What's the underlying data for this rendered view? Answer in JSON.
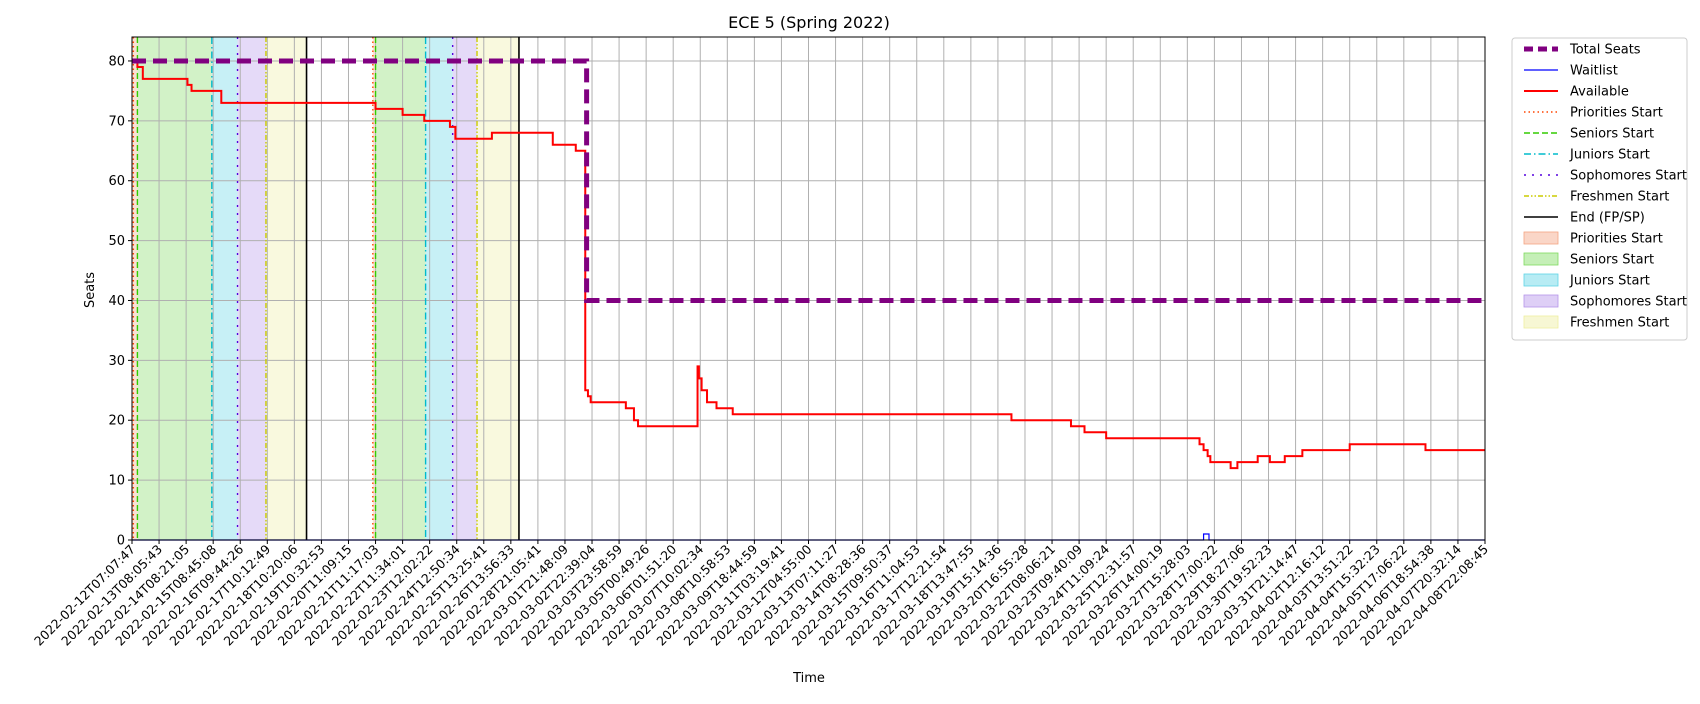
{
  "chart_data": {
    "type": "line",
    "title": "ECE 5 (Spring 2022)",
    "xlabel": "Time",
    "ylabel": "Seats",
    "ylim": [
      0,
      84
    ],
    "yticks": [
      0,
      10,
      20,
      30,
      40,
      50,
      60,
      70,
      80
    ],
    "grid": true,
    "legend_position": "outside-right",
    "x_tick_labels": [
      "2022-02-12T07:07:47",
      "2022-02-13T08:05:43",
      "2022-02-14T08:21:05",
      "2022-02-15T08:45:08",
      "2022-02-16T09:44:26",
      "2022-02-17T10:12:49",
      "2022-02-18T10:20:06",
      "2022-02-19T10:32:53",
      "2022-02-20T11:09:15",
      "2022-02-21T11:17:03",
      "2022-02-22T11:34:01",
      "2022-02-23T12:02:22",
      "2022-02-24T12:50:34",
      "2022-02-25T13:25:41",
      "2022-02-26T13:56:33",
      "2022-02-28T21:05:41",
      "2022-03-01T21:48:09",
      "2022-03-02T22:39:04",
      "2022-03-03T23:58:59",
      "2022-03-05T00:49:26",
      "2022-03-06T01:51:20",
      "2022-03-07T10:02:34",
      "2022-03-08T10:58:53",
      "2022-03-09T18:44:59",
      "2022-03-11T03:19:41",
      "2022-03-12T04:55:00",
      "2022-03-13T07:11:27",
      "2022-03-14T08:28:36",
      "2022-03-15T09:50:37",
      "2022-03-16T11:04:53",
      "2022-03-17T12:21:54",
      "2022-03-18T13:47:55",
      "2022-03-19T15:14:36",
      "2022-03-20T16:55:28",
      "2022-03-22T08:06:21",
      "2022-03-23T09:40:09",
      "2022-03-24T11:09:24",
      "2022-03-25T12:31:57",
      "2022-03-26T14:00:19",
      "2022-03-27T15:28:03",
      "2022-03-28T17:00:22",
      "2022-03-29T18:27:06",
      "2022-03-30T19:52:23",
      "2022-03-31T21:14:47",
      "2022-04-02T12:16:12",
      "2022-04-03T13:51:22",
      "2022-04-04T15:32:23",
      "2022-04-05T17:06:22",
      "2022-04-06T18:54:38",
      "2022-04-07T20:32:14",
      "2022-04-08T22:08:45"
    ],
    "x_range_index": [
      0,
      50
    ],
    "series": [
      {
        "name": "Total Seats",
        "color": "#800080",
        "style": "dashed-thick",
        "points": [
          [
            0,
            80
          ],
          [
            16.8,
            80
          ],
          [
            16.8,
            40
          ],
          [
            50,
            40
          ]
        ]
      },
      {
        "name": "Waitlist",
        "color": "#0000ff",
        "style": "solid-thin",
        "points": [
          [
            0,
            0
          ],
          [
            39.6,
            0
          ],
          [
            39.6,
            1
          ],
          [
            39.8,
            1
          ],
          [
            39.8,
            0
          ],
          [
            50,
            0
          ]
        ]
      },
      {
        "name": "Available",
        "color": "#ff0000",
        "style": "solid",
        "points": [
          [
            0,
            80
          ],
          [
            0.2,
            80
          ],
          [
            0.2,
            79
          ],
          [
            0.4,
            79
          ],
          [
            0.4,
            77
          ],
          [
            2.05,
            77
          ],
          [
            2.05,
            76
          ],
          [
            2.2,
            76
          ],
          [
            2.2,
            75
          ],
          [
            3.3,
            75
          ],
          [
            3.3,
            73
          ],
          [
            9.0,
            73
          ],
          [
            9.0,
            72
          ],
          [
            10.0,
            72
          ],
          [
            10.0,
            71
          ],
          [
            10.8,
            71
          ],
          [
            10.8,
            70
          ],
          [
            11.75,
            70
          ],
          [
            11.75,
            69
          ],
          [
            11.95,
            69
          ],
          [
            11.95,
            67
          ],
          [
            13.3,
            67
          ],
          [
            13.3,
            68
          ],
          [
            15.55,
            68
          ],
          [
            15.55,
            66
          ],
          [
            16.4,
            66
          ],
          [
            16.4,
            65
          ],
          [
            16.75,
            65
          ],
          [
            16.75,
            25
          ],
          [
            16.85,
            25
          ],
          [
            16.85,
            24
          ],
          [
            16.95,
            24
          ],
          [
            16.95,
            23
          ],
          [
            18.25,
            23
          ],
          [
            18.25,
            22
          ],
          [
            18.55,
            22
          ],
          [
            18.55,
            20
          ],
          [
            18.7,
            20
          ],
          [
            18.7,
            19
          ],
          [
            20.9,
            19
          ],
          [
            20.9,
            29
          ],
          [
            20.95,
            29
          ],
          [
            20.95,
            27
          ],
          [
            21.05,
            27
          ],
          [
            21.05,
            25
          ],
          [
            21.25,
            25
          ],
          [
            21.25,
            23
          ],
          [
            21.6,
            23
          ],
          [
            21.6,
            22
          ],
          [
            22.2,
            22
          ],
          [
            22.2,
            21
          ],
          [
            32.5,
            21
          ],
          [
            32.5,
            20
          ],
          [
            34.7,
            20
          ],
          [
            34.7,
            19
          ],
          [
            35.2,
            19
          ],
          [
            35.2,
            18
          ],
          [
            36.0,
            18
          ],
          [
            36.0,
            17
          ],
          [
            39.45,
            17
          ],
          [
            39.45,
            16
          ],
          [
            39.6,
            16
          ],
          [
            39.6,
            15
          ],
          [
            39.75,
            15
          ],
          [
            39.75,
            14
          ],
          [
            39.85,
            14
          ],
          [
            39.85,
            13
          ],
          [
            40.6,
            13
          ],
          [
            40.6,
            12
          ],
          [
            40.85,
            12
          ],
          [
            40.85,
            13
          ],
          [
            41.6,
            13
          ],
          [
            41.6,
            14
          ],
          [
            42.05,
            14
          ],
          [
            42.05,
            13
          ],
          [
            42.6,
            13
          ],
          [
            42.6,
            14
          ],
          [
            43.25,
            14
          ],
          [
            43.25,
            15
          ],
          [
            45.0,
            15
          ],
          [
            45.0,
            16
          ],
          [
            47.8,
            16
          ],
          [
            47.8,
            15
          ],
          [
            50,
            15
          ]
        ]
      }
    ],
    "vertical_markers": [
      {
        "name": "Priorities Start",
        "color": "#ff4500",
        "style": "dotted",
        "x": [
          0.05,
          8.9
        ]
      },
      {
        "name": "Seniors Start",
        "color": "#33cc00",
        "style": "dashed",
        "x": [
          0.2,
          9.0
        ]
      },
      {
        "name": "Juniors Start",
        "color": "#00bbcc",
        "style": "dashdot",
        "x": [
          2.95,
          10.85
        ]
      },
      {
        "name": "Sophomores Start",
        "color": "#5500dd",
        "style": "dotsparse",
        "x": [
          3.9,
          11.85
        ]
      },
      {
        "name": "Freshmen Start",
        "color": "#cccc00",
        "style": "dashdotdot",
        "x": [
          4.95,
          12.75
        ]
      },
      {
        "name": "End (FP/SP)",
        "color": "#000000",
        "style": "solid",
        "x": [
          6.45,
          14.3
        ]
      }
    ],
    "shaded_regions": [
      {
        "name": "Priorities Start",
        "color": "#f4a582",
        "ranges": [
          [
            0,
            0.2
          ],
          [
            8.9,
            9.0
          ]
        ]
      },
      {
        "name": "Seniors Start",
        "color": "#7fdb5f",
        "ranges": [
          [
            0.2,
            2.95
          ],
          [
            9.0,
            10.85
          ]
        ]
      },
      {
        "name": "Juniors Start",
        "color": "#5fd5e6",
        "ranges": [
          [
            2.95,
            3.9
          ],
          [
            10.85,
            11.85
          ]
        ]
      },
      {
        "name": "Sophomores Start",
        "color": "#b594ea",
        "ranges": [
          [
            3.9,
            4.95
          ],
          [
            11.85,
            12.75
          ]
        ]
      },
      {
        "name": "Freshmen Start",
        "color": "#eeeea0",
        "ranges": [
          [
            4.95,
            6.45
          ],
          [
            12.75,
            14.3
          ]
        ]
      }
    ]
  }
}
